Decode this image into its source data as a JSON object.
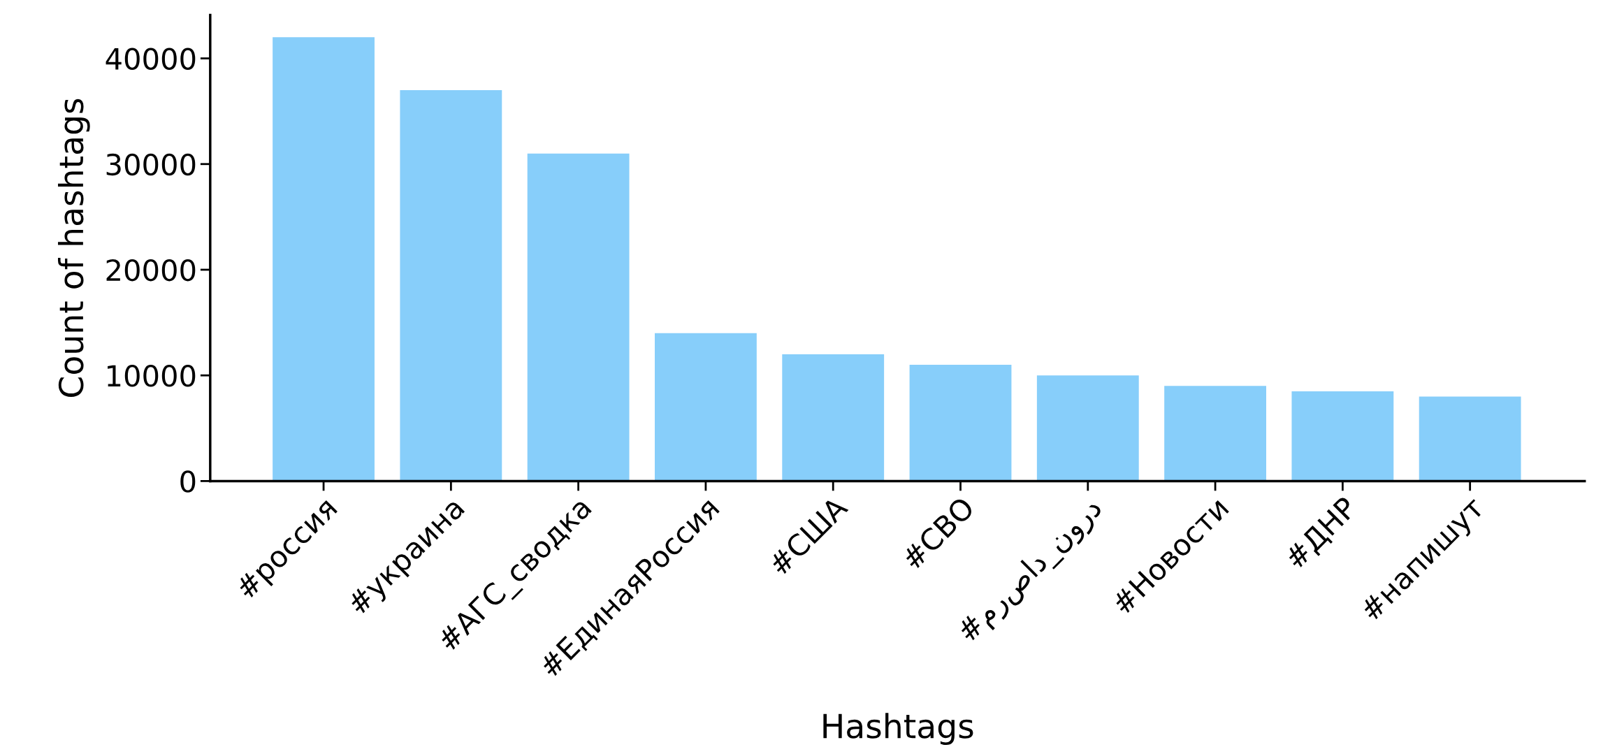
{
  "chart_data": {
    "type": "bar",
    "xlabel": "Hashtags",
    "ylabel": "Count of hashtags",
    "categories": [
      "#россия",
      "#украина",
      "#АГС_сводка",
      "#ЕдинаяРоссия",
      "#США",
      "#СВО",
      "#مرصاد_نورد",
      "#Новости",
      "#ДНР",
      "#напишут"
    ],
    "values": [
      42000,
      37000,
      31000,
      14000,
      12000,
      11000,
      10000,
      9000,
      8500,
      8000
    ],
    "color": "#87cefa",
    "ylim": [
      0,
      44100
    ],
    "yticks": [
      0,
      10000,
      20000,
      30000,
      40000
    ],
    "grid": false,
    "legend": false
  }
}
